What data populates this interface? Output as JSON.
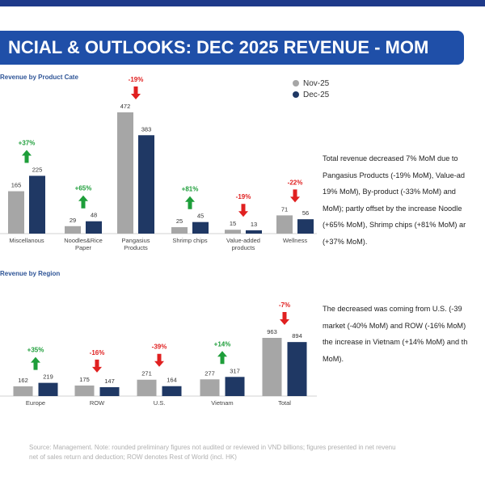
{
  "title": "NCIAL & OUTLOOKS: DEC 2025 REVENUE - MOM",
  "colors": {
    "nov": "#a6a6a6",
    "dec": "#1f3864",
    "up": "#1e9e3a",
    "down": "#e02020"
  },
  "legend": [
    {
      "label": "Nov-25",
      "color": "#a6a6a6"
    },
    {
      "label": "Dec-25",
      "color": "#1f3864"
    }
  ],
  "chart_data": [
    {
      "type": "bar",
      "title": "Revenue by Product Cate",
      "categories": [
        "Miscellanous",
        "Noodles&Rice Paper",
        "Pangasius Products",
        "Shrimp chips",
        "Value-added products",
        "Wellness"
      ],
      "series": [
        {
          "name": "Nov-25",
          "values": [
            165,
            29,
            472,
            25,
            15,
            71
          ]
        },
        {
          "name": "Dec-25",
          "values": [
            225,
            48,
            383,
            45,
            13,
            56
          ]
        }
      ],
      "changes": [
        "+37%",
        "+65%",
        "-19%",
        "+81%",
        "-19%",
        "-22%"
      ],
      "ylim": [
        0,
        472
      ]
    },
    {
      "type": "bar",
      "title": "Revenue by Region",
      "categories": [
        "Europe",
        "ROW",
        "U.S.",
        "Vietnam",
        "Total"
      ],
      "series": [
        {
          "name": "Nov-25",
          "values": [
            162,
            175,
            271,
            277,
            963
          ]
        },
        {
          "name": "Dec-25",
          "values": [
            219,
            147,
            164,
            317,
            894
          ]
        }
      ],
      "changes": [
        "+35%",
        "-16%",
        "-39%",
        "+14%",
        "-7%"
      ],
      "ylim": [
        0,
        963
      ]
    }
  ],
  "commentary": {
    "product_lines": [
      "Total revenue decreased 7% MoM due to",
      "Pangasius Products (-19% MoM), Value-ad",
      "19% MoM), By-product (-33% MoM) and",
      "MoM); partly offset by the increase Noodle",
      "(+65% MoM), Shrimp chips (+81% MoM) ar",
      "(+37% MoM)."
    ],
    "region_lines": [
      "The decreased was coming from U.S. (-39",
      "market (-40% MoM) and ROW (-16% MoM)",
      "the increase in Vietnam (+14% MoM) and th",
      "MoM)."
    ]
  },
  "source": {
    "line1": "Source: Management. Note: rounded preliminary figures not audited or reviewed in VND billions; figures presented in net revenu",
    "line2": "net of sales return and deduction; ROW denotes Rest of World (incl. HK)"
  }
}
